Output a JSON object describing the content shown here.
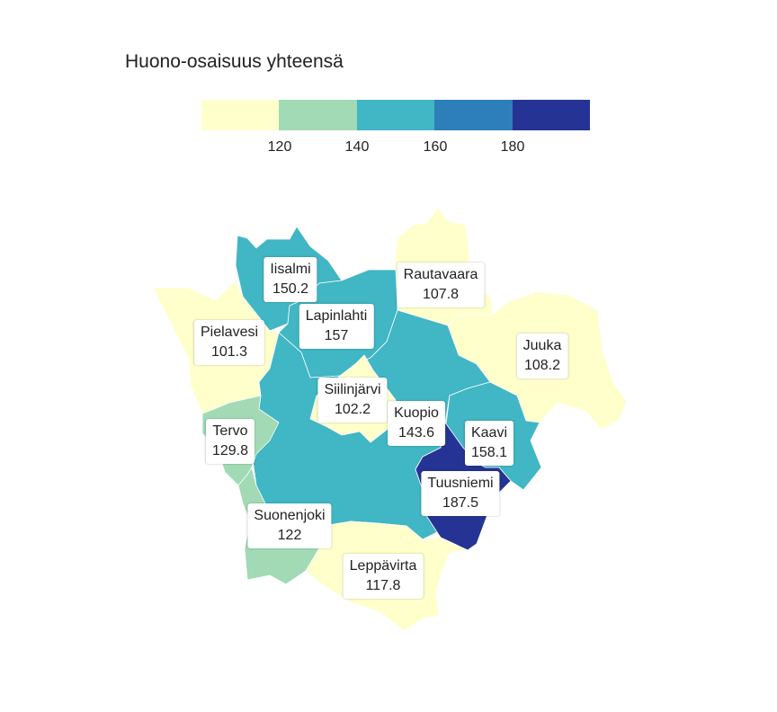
{
  "title": "Huono-osaisuus yhteensä",
  "legend": {
    "colors": [
      "#ffffcc",
      "#a1dab4",
      "#41b6c4",
      "#2c7fb8",
      "#253494"
    ],
    "breaks": [
      "120",
      "140",
      "160",
      "180"
    ]
  },
  "regions": [
    {
      "name": "Iisalmi",
      "value": "150.2",
      "color": "#41b6c4"
    },
    {
      "name": "Rautavaara",
      "value": "107.8",
      "color": "#ffffcc"
    },
    {
      "name": "Lapinlahti",
      "value": "157",
      "color": "#41b6c4"
    },
    {
      "name": "Pielavesi",
      "value": "101.3",
      "color": "#ffffcc"
    },
    {
      "name": "Juuka",
      "value": "108.2",
      "color": "#ffffcc"
    },
    {
      "name": "Siilinjärvi",
      "value": "102.2",
      "color": "#ffffcc"
    },
    {
      "name": "Kuopio",
      "value": "143.6",
      "color": "#41b6c4"
    },
    {
      "name": "Tervo",
      "value": "129.8",
      "color": "#a1dab4"
    },
    {
      "name": "Kaavi",
      "value": "158.1",
      "color": "#41b6c4"
    },
    {
      "name": "Tuusniemi",
      "value": "187.5",
      "color": "#253494"
    },
    {
      "name": "Suonenjoki",
      "value": "122",
      "color": "#a1dab4"
    },
    {
      "name": "Leppävirta",
      "value": "117.8",
      "color": "#ffffcc"
    }
  ]
}
